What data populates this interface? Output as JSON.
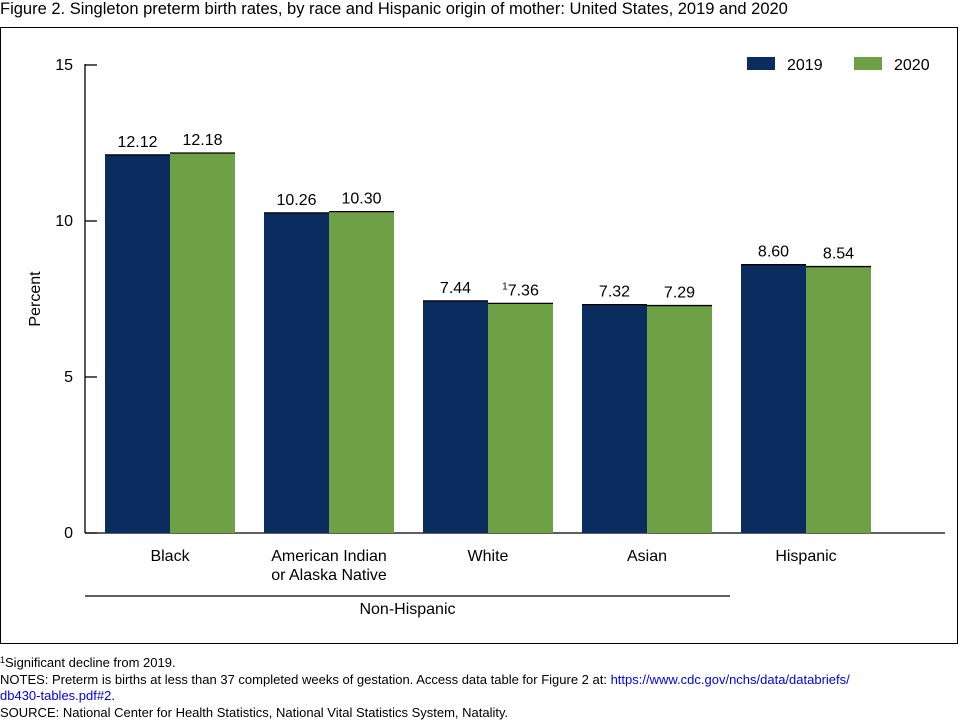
{
  "figure_title": "Figure 2. Singleton preterm birth rates, by race and Hispanic origin of mother: United States, 2019 and 2020",
  "colors": {
    "series_2019": "#0b2c5e",
    "series_2020": "#6ea045"
  },
  "chart_data": {
    "type": "bar",
    "title": "Figure 2. Singleton preterm birth rates, by race and Hispanic origin of mother: United States, 2019 and 2020",
    "xlabel": "",
    "ylabel": "Percent",
    "ylim": [
      0,
      15
    ],
    "yticks": [
      "0",
      "5",
      "10",
      "15"
    ],
    "grid": false,
    "legend_position": "top-right",
    "categories": [
      [
        "Black"
      ],
      [
        "American Indian",
        "or Alaska Native"
      ],
      [
        "White"
      ],
      [
        "Asian"
      ],
      [
        "Hispanic"
      ]
    ],
    "series": [
      {
        "name": "2019",
        "values": [
          12.12,
          10.26,
          7.44,
          7.32,
          8.6
        ],
        "labels": [
          "12.12",
          "10.26",
          "7.44",
          "7.32",
          "8.60"
        ],
        "label_marks": [
          "",
          "",
          "",
          "",
          ""
        ]
      },
      {
        "name": "2020",
        "values": [
          12.18,
          10.3,
          7.36,
          7.29,
          8.54
        ],
        "labels": [
          "12.18",
          "10.30",
          "7.36",
          "7.29",
          "8.54"
        ],
        "label_marks": [
          "",
          "",
          "1",
          "",
          ""
        ]
      }
    ],
    "group_bracket": {
      "label": "Non-Hispanic",
      "spans_categories": [
        0,
        3
      ]
    }
  },
  "footnotes": {
    "note1_mark": "1",
    "note1_text": "Significant decline from 2019.",
    "notes_text": "NOTES: Preterm is births at less than 37 completed weeks of gestation. Access data table for Figure 2 at: ",
    "notes_link_line1": "https://www.cdc.gov/nchs/data/databriefs/",
    "notes_link_line2": "db430-tables.pdf#2",
    "notes_end": ".",
    "source_text": "SOURCE: National Center for Health Statistics, National Vital Statistics System, Natality."
  }
}
